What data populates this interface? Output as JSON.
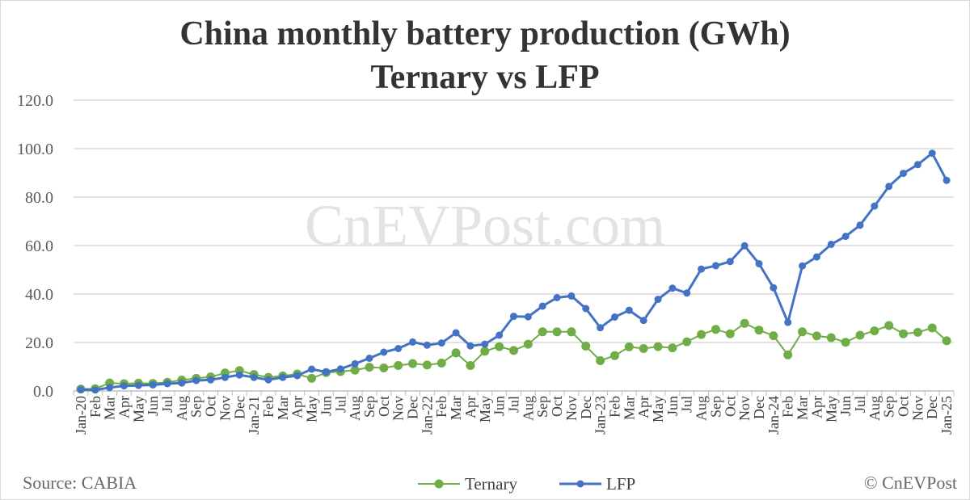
{
  "chart_data": {
    "type": "line",
    "title": "China monthly battery production (GWh)",
    "subtitle": "Ternary vs LFP",
    "watermark": "CnEVPost.com",
    "source": "Source: CABIA",
    "copyright": "© CnEVPost",
    "ylim": [
      0,
      120
    ],
    "yticks": [
      "0.0",
      "20.0",
      "40.0",
      "60.0",
      "80.0",
      "100.0",
      "120.0"
    ],
    "grid": true,
    "legend_position": "bottom",
    "categories": [
      "Jan-20",
      "Feb",
      "Mar",
      "Apr",
      "May",
      "Jun",
      "Jul",
      "Aug",
      "Sep",
      "Oct",
      "Nov",
      "Dec",
      "Jan-21",
      "Feb",
      "Mar",
      "Apr",
      "May",
      "Jun",
      "Jul",
      "Aug",
      "Sep",
      "Oct",
      "Nov",
      "Dec",
      "Jan-22",
      "Feb",
      "Mar",
      "Apr",
      "May",
      "Jun",
      "Jul",
      "Aug",
      "Sep",
      "Oct",
      "Nov",
      "Dec",
      "Jan-23",
      "Feb",
      "Mar",
      "Apr",
      "May",
      "Jun",
      "Jul",
      "Aug",
      "Sep",
      "Oct",
      "Nov",
      "Dec",
      "Jan-24",
      "Feb",
      "Mar",
      "Apr",
      "May",
      "Jun",
      "Jul",
      "Aug",
      "Sep",
      "Oct",
      "Nov",
      "Dec",
      "Jan-25"
    ],
    "series": [
      {
        "name": "Ternary",
        "color": "#70ad47",
        "values": [
          0.8,
          0.9,
          3.3,
          3.0,
          3.2,
          3.1,
          3.6,
          4.5,
          5.2,
          5.8,
          7.4,
          8.4,
          6.8,
          5.6,
          6.2,
          7.0,
          5.2,
          7.6,
          8.0,
          8.6,
          9.8,
          9.5,
          10.5,
          11.3,
          10.7,
          11.5,
          15.7,
          10.5,
          16.4,
          18.3,
          16.7,
          19.3,
          24.4,
          24.4,
          24.4,
          18.5,
          12.5,
          14.6,
          18.2,
          17.5,
          18.3,
          17.8,
          20.3,
          23.3,
          25.4,
          23.6,
          27.9,
          25.1,
          22.8,
          14.9,
          24.4,
          22.7,
          22.0,
          20.1,
          23.0,
          24.8,
          27.0,
          23.6,
          24.2,
          26.0,
          20.7
        ]
      },
      {
        "name": "LFP",
        "color": "#4472c4",
        "values": [
          0.5,
          0.4,
          1.4,
          2.1,
          2.3,
          2.5,
          3.0,
          3.3,
          4.3,
          4.6,
          5.6,
          6.6,
          5.6,
          4.6,
          5.6,
          6.3,
          9.0,
          7.8,
          9.1,
          11.2,
          13.5,
          16.0,
          17.5,
          20.2,
          18.9,
          19.8,
          24.0,
          18.6,
          19.3,
          23.0,
          30.8,
          30.6,
          35.0,
          38.5,
          39.2,
          34.0,
          26.1,
          30.5,
          33.3,
          29.1,
          37.8,
          42.4,
          40.4,
          50.3,
          51.7,
          53.4,
          59.9,
          52.5,
          42.6,
          28.3,
          51.6,
          55.3,
          60.5,
          63.8,
          68.4,
          76.3,
          84.4,
          89.8,
          93.4,
          98.1,
          86.9
        ]
      }
    ]
  }
}
